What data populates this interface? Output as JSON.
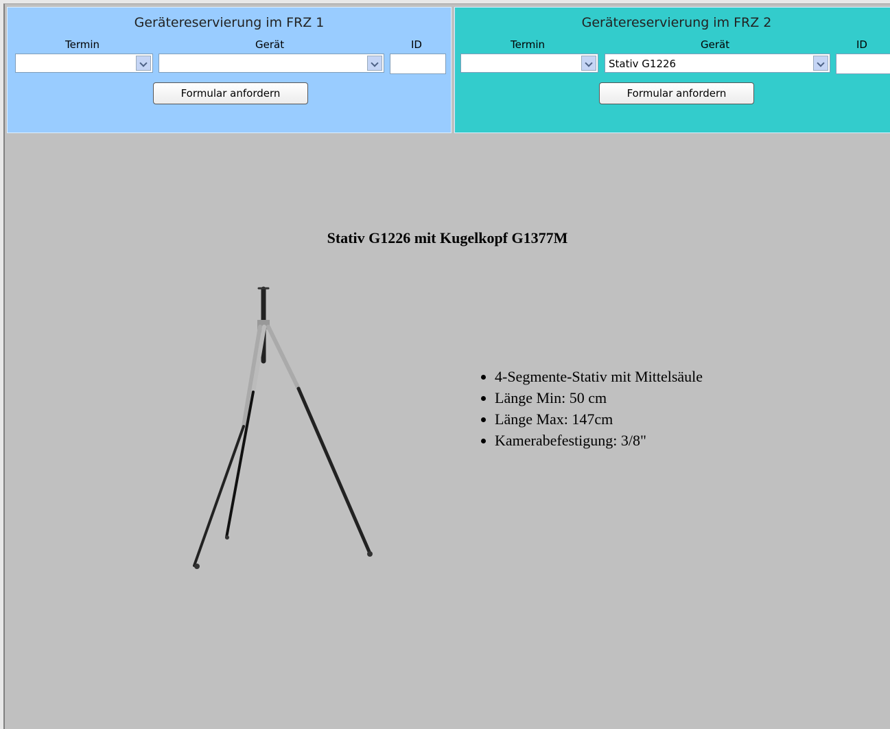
{
  "panels": [
    {
      "title": "Gerätereservierung im FRZ 1",
      "label_termin": "Termin",
      "label_geraet": "Gerät",
      "label_id": "ID",
      "button": "Formular anfordern"
    },
    {
      "title": "Gerätereservierung im FRZ 2",
      "label_termin": "Termin",
      "label_geraet": "Gerät",
      "label_id": "ID",
      "geraet_selected": "Stativ G1226",
      "button": "Formular anfordern"
    }
  ],
  "product": {
    "title": "Stativ G1226 mit Kugelkopf G1377M",
    "features": [
      "4-Segmente-Stativ mit Mittelsäule",
      "Länge Min: 50 cm",
      "Länge Max: 147cm",
      "Kamerabefestigung: 3/8\""
    ]
  }
}
